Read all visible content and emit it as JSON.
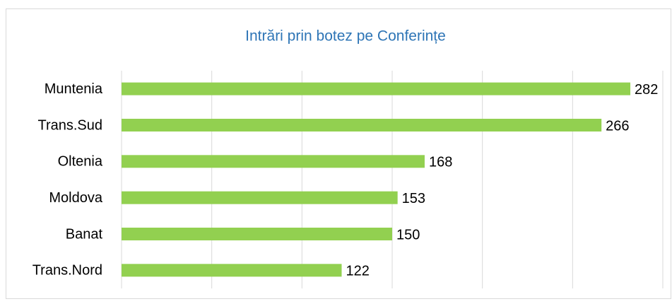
{
  "chart_data": {
    "type": "bar",
    "orientation": "horizontal",
    "title": "Intrări prin botez pe Conferințe",
    "categories": [
      "Muntenia",
      "Trans.Sud",
      "Oltenia",
      "Moldova",
      "Banat",
      "Trans.Nord"
    ],
    "values": [
      282,
      266,
      168,
      153,
      150,
      122
    ],
    "color": "#92d050",
    "xlim": [
      0,
      300
    ],
    "xticks": [
      0,
      50,
      100,
      150,
      200,
      250,
      300
    ],
    "grid": true
  }
}
